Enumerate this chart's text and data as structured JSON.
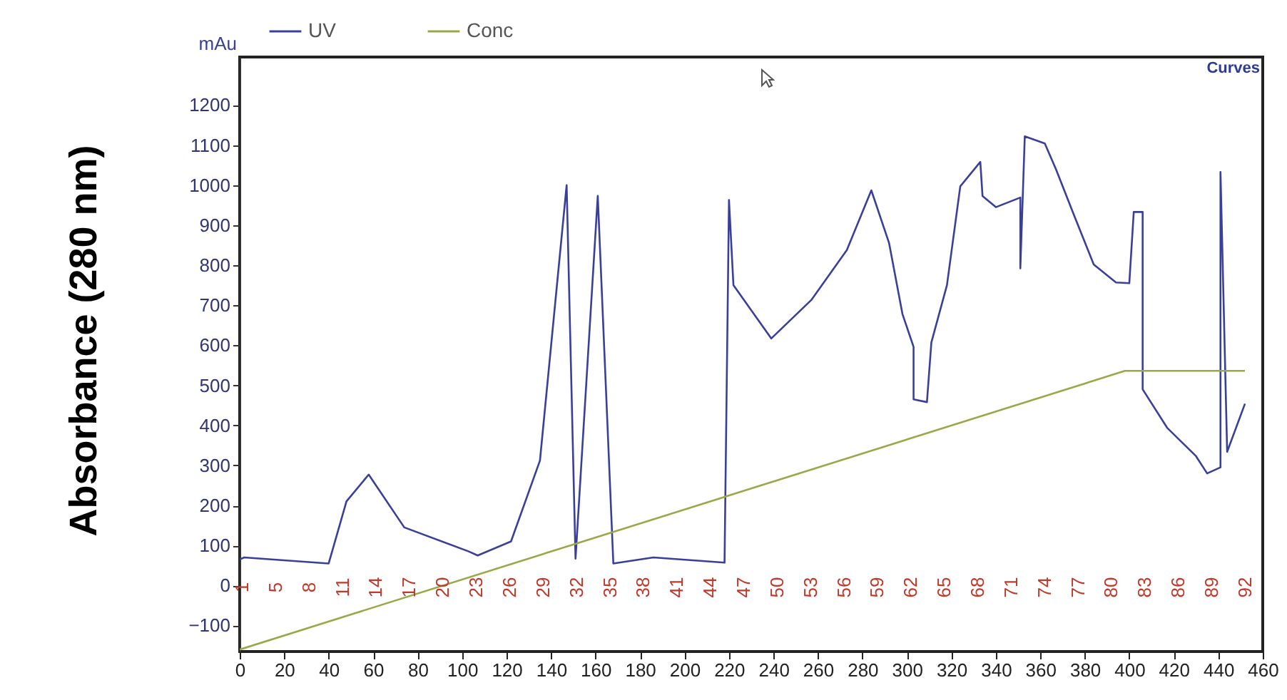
{
  "chart_data": {
    "type": "line",
    "ylabel": "Absorbance (280 nm)",
    "x": [
      0,
      2,
      40,
      48,
      58,
      74,
      103,
      107,
      122,
      135,
      147,
      151,
      161,
      168,
      186,
      218,
      220,
      222,
      239,
      257,
      273,
      284,
      292,
      298,
      303,
      303,
      309,
      311,
      318,
      324,
      333,
      334,
      340,
      351,
      351,
      353,
      362,
      367,
      375,
      384,
      394,
      400,
      402,
      406,
      406,
      417,
      430,
      435,
      441,
      441,
      444,
      452
    ],
    "series": [
      {
        "name": "UV",
        "color": "#3a3f9a",
        "values": [
          65,
          70,
          55,
          210,
          277,
          145,
          85,
          75,
          110,
          312,
          1000,
          67,
          973,
          55,
          70,
          57,
          963,
          750,
          617,
          713,
          838,
          987,
          855,
          678,
          596,
          465,
          458,
          607,
          750,
          997,
          1058,
          973,
          945,
          969,
          792,
          1122,
          1104,
          1040,
          927,
          802,
          757,
          755,
          933,
          933,
          490,
          394,
          323,
          280,
          295,
          1033,
          334,
          454
        ]
      },
      {
        "name": "Conc",
        "color": "#9aa84a",
        "x": [
          0,
          398,
          452
        ],
        "values": [
          -160,
          536,
          536
        ]
      }
    ],
    "xlim": [
      0,
      460
    ],
    "xticks": [
      0,
      20,
      40,
      60,
      80,
      100,
      120,
      140,
      160,
      180,
      200,
      220,
      240,
      260,
      280,
      300,
      320,
      340,
      360,
      380,
      400,
      420,
      440,
      460
    ],
    "ylim": [
      -165,
      1320
    ],
    "yticks": [
      -100,
      0,
      100,
      200,
      300,
      400,
      500,
      600,
      700,
      800,
      900,
      1000,
      1100,
      1200
    ],
    "legend": "top left",
    "marker": "none",
    "line_style": "solid",
    "grid": false,
    "annotations": [
      "mAu",
      "Curves",
      "1",
      "5",
      "8",
      "11",
      "14",
      "17",
      "20",
      "23",
      "26",
      "29",
      "32",
      "35",
      "38",
      "41",
      "44",
      "47",
      "50",
      "53",
      "56",
      "59",
      "62",
      "65",
      "68",
      "71",
      "74",
      "77",
      "80",
      "83",
      "86",
      "89",
      "92"
    ]
  }
}
